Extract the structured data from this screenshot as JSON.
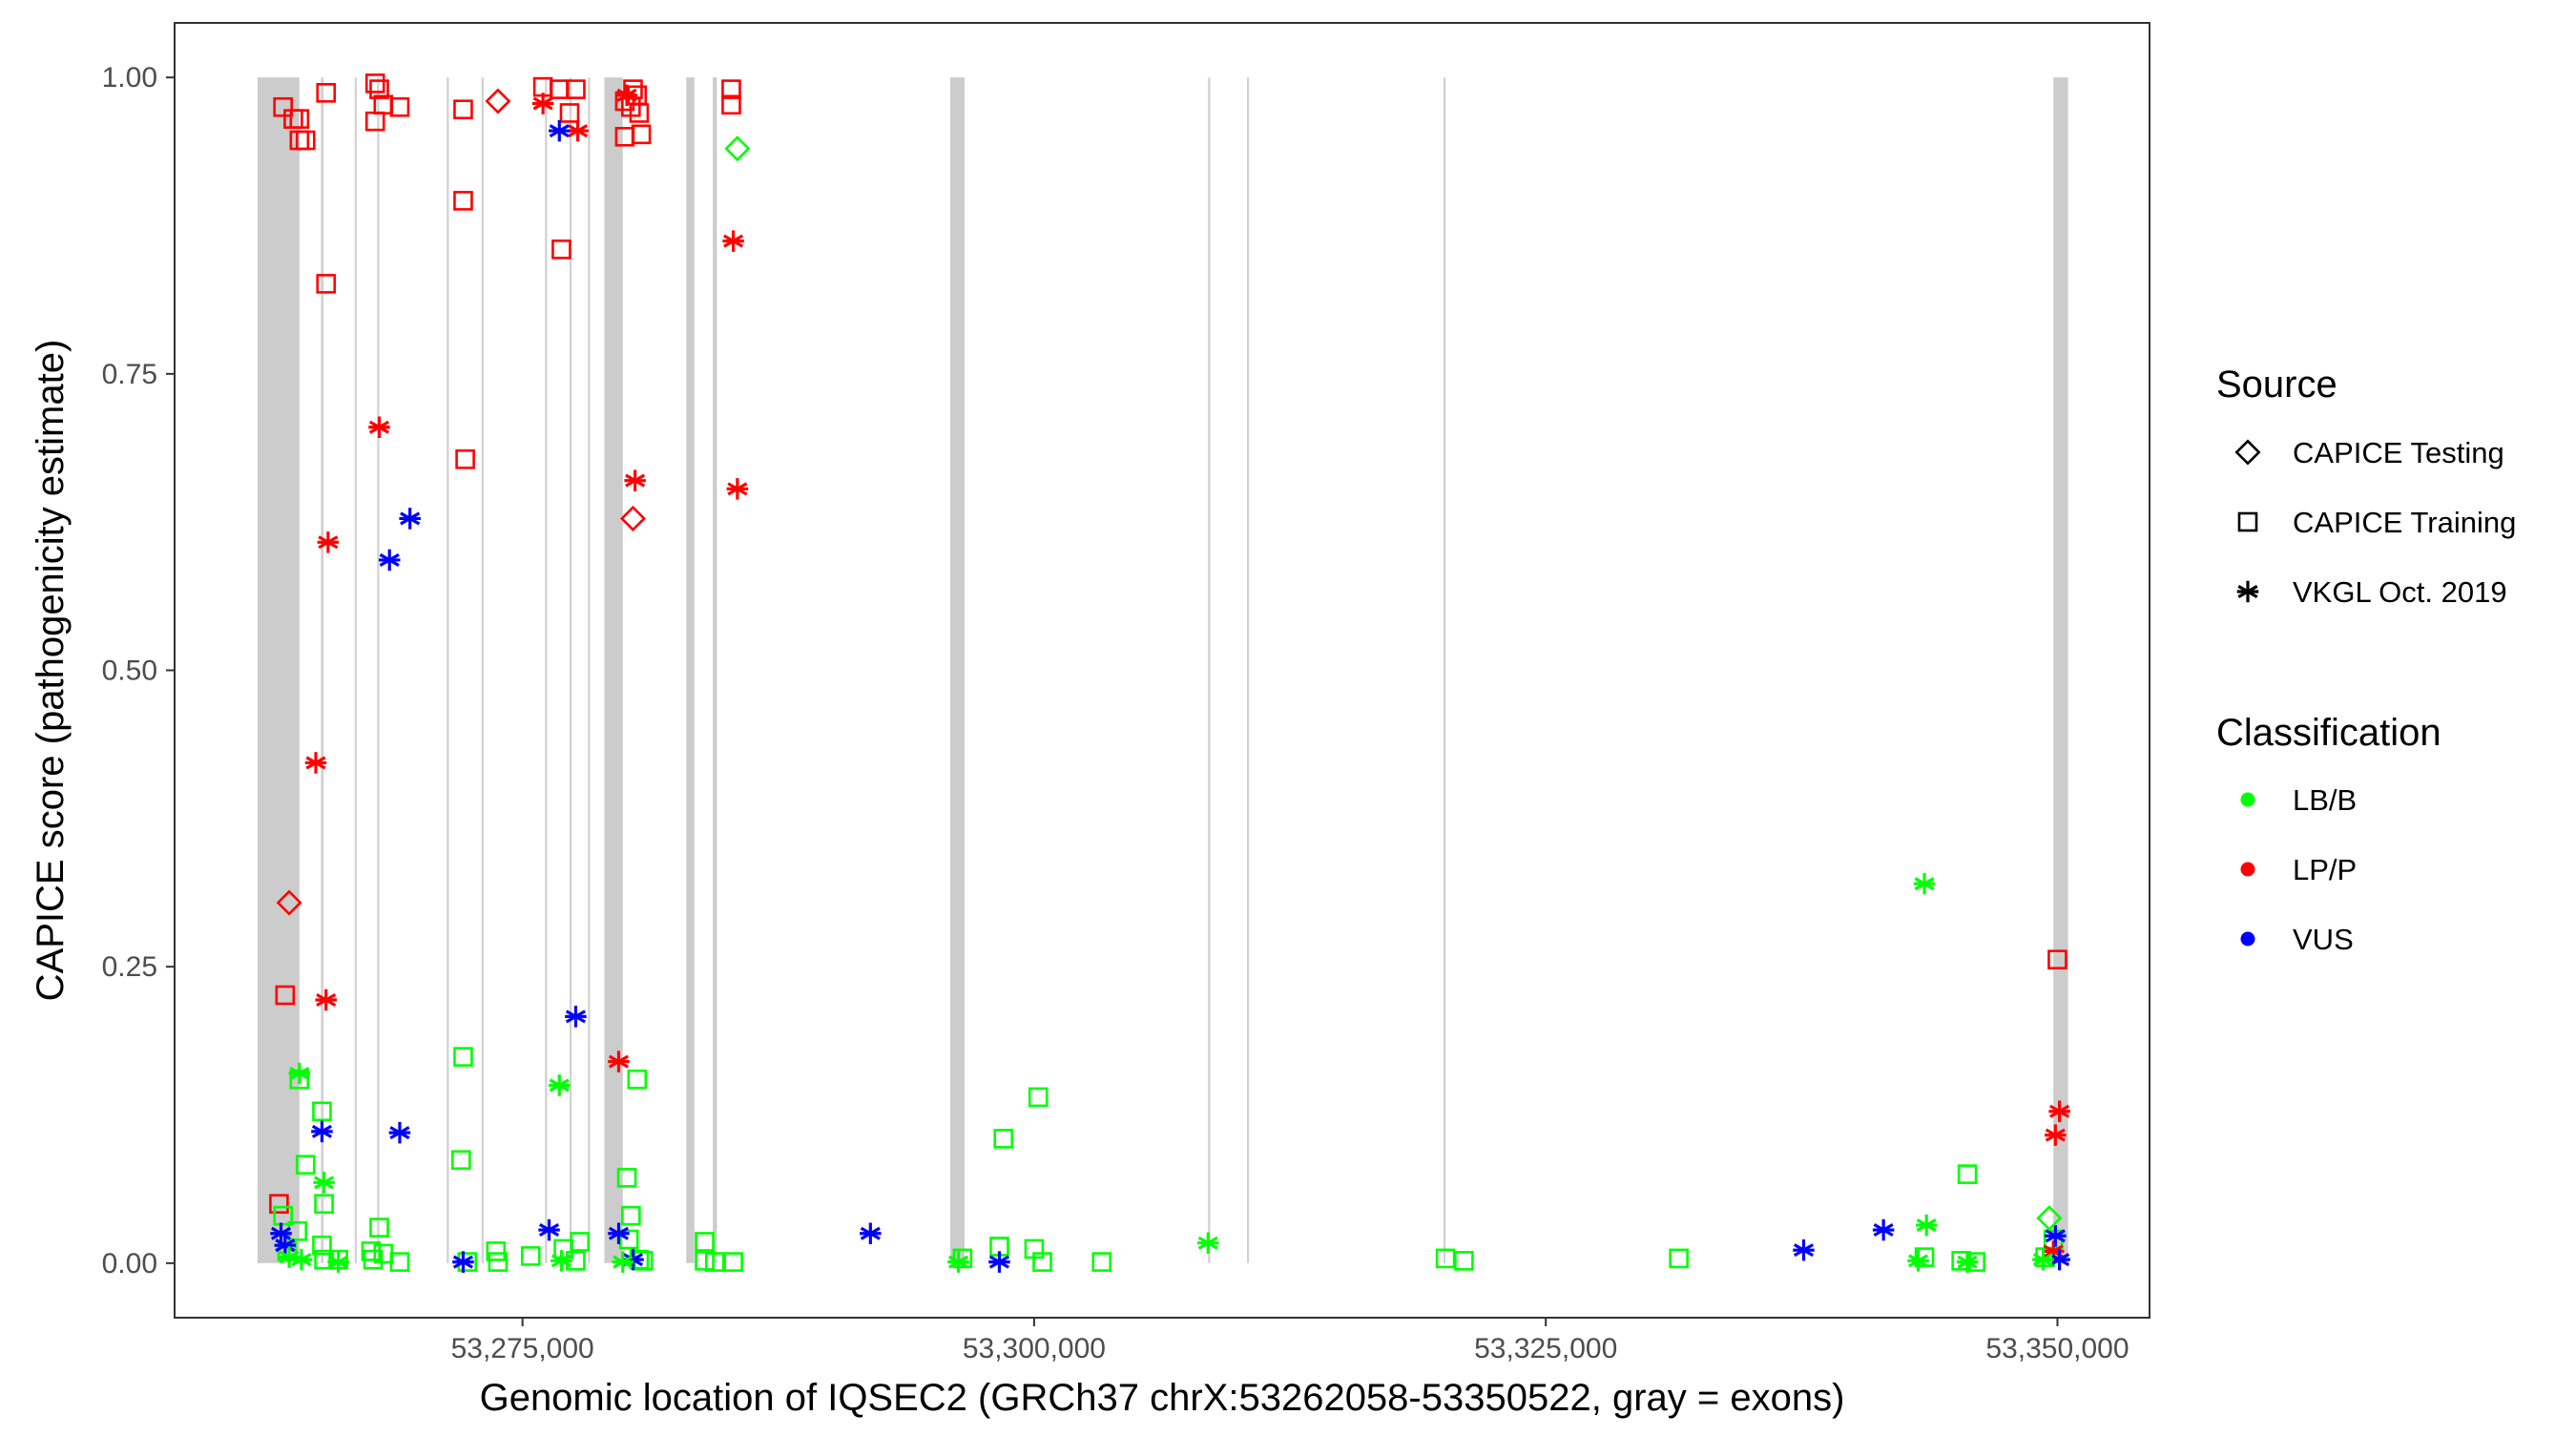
{
  "chart_data": {
    "type": "scatter",
    "title": "",
    "xlabel": "Genomic location of IQSEC2 (GRCh37 chrX:53262058-53350522, gray = exons)",
    "ylabel": "CAPICE score (pathogenicity estimate)",
    "xlim": [
      53258000,
      53354500
    ],
    "ylim": [
      -0.046,
      1.046
    ],
    "x_ticks": [
      53275000,
      53300000,
      53325000,
      53350000
    ],
    "x_tick_labels": [
      "53,275,000",
      "53,300,000",
      "53,325,000",
      "53,350,000"
    ],
    "y_ticks": [
      0,
      0.25,
      0.5,
      0.75,
      1
    ],
    "y_tick_labels": [
      "0.00",
      "0.25",
      "0.50",
      "0.75",
      "1.00"
    ],
    "grid": false,
    "exons": [
      [
        53262050,
        53264100
      ],
      [
        53265150,
        53265280
      ],
      [
        53266800,
        53266900
      ],
      [
        53267900,
        53268000
      ],
      [
        53271300,
        53271400
      ],
      [
        53273000,
        53273100
      ],
      [
        53276100,
        53276200
      ],
      [
        53277300,
        53277400
      ],
      [
        53278200,
        53278300
      ],
      [
        53279000,
        53279900
      ],
      [
        53283000,
        53283400
      ],
      [
        53284300,
        53284500
      ],
      [
        53295900,
        53296600
      ],
      [
        53308500,
        53308600
      ],
      [
        53310400,
        53310500
      ],
      [
        53320000,
        53320100
      ],
      [
        53349800,
        53350522
      ]
    ],
    "legends": [
      {
        "title": "Source",
        "items": [
          {
            "label": "CAPICE Testing",
            "shape": "diamond"
          },
          {
            "label": "CAPICE Training",
            "shape": "square"
          },
          {
            "label": "VKGL Oct. 2019",
            "shape": "asterisk"
          }
        ]
      },
      {
        "title": "Classification",
        "items": [
          {
            "label": "LB/B",
            "color": "#00ff00"
          },
          {
            "label": "LP/P",
            "color": "#ff0000"
          },
          {
            "label": "VUS",
            "color": "#0000ff"
          }
        ]
      }
    ],
    "series": [
      {
        "name": "CAPICE Training",
        "shape": "square",
        "groups": [
          {
            "classification": "LP/P",
            "points": [
              [
                53263300,
                0.975
              ],
              [
                53263800,
                0.965
              ],
              [
                53264100,
                0.965
              ],
              [
                53264100,
                0.947
              ],
              [
                53264400,
                0.947
              ],
              [
                53265400,
                0.987
              ],
              [
                53267800,
                0.995
              ],
              [
                53268000,
                0.99
              ],
              [
                53267800,
                0.963
              ],
              [
                53268200,
                0.977
              ],
              [
                53269000,
                0.975
              ],
              [
                53272100,
                0.973
              ],
              [
                53276000,
                0.992
              ],
              [
                53276800,
                0.99
              ],
              [
                53277600,
                0.99
              ],
              [
                53277300,
                0.97
              ],
              [
                53280000,
                0.98
              ],
              [
                53280400,
                0.99
              ],
              [
                53280600,
                0.985
              ],
              [
                53280300,
                0.975
              ],
              [
                53280700,
                0.97
              ],
              [
                53280000,
                0.95
              ],
              [
                53280800,
                0.952
              ],
              [
                53285200,
                0.99
              ],
              [
                53285200,
                0.977
              ],
              [
                53272100,
                0.896
              ],
              [
                53276900,
                0.855
              ],
              [
                53265400,
                0.826
              ],
              [
                53272200,
                0.678
              ],
              [
                53263400,
                0.226
              ],
              [
                53263100,
                0.05
              ],
              [
                53350000,
                0.256
              ]
            ]
          },
          {
            "classification": "LB/B",
            "points": [
              [
                53264100,
                0.155
              ],
              [
                53265200,
                0.128
              ],
              [
                53264400,
                0.083
              ],
              [
                53265300,
                0.05
              ],
              [
                53264000,
                0.027
              ],
              [
                53263300,
                0.04
              ],
              [
                53263500,
                0.01
              ],
              [
                53265200,
                0.015
              ],
              [
                53265300,
                0.003
              ],
              [
                53266000,
                0.003
              ],
              [
                53267600,
                0.01
              ],
              [
                53267700,
                0.003
              ],
              [
                53268000,
                0.03
              ],
              [
                53268200,
                0.008
              ],
              [
                53269000,
                0.001
              ],
              [
                53272100,
                0.174
              ],
              [
                53272000,
                0.087
              ],
              [
                53272300,
                0.001
              ],
              [
                53273700,
                0.01
              ],
              [
                53273800,
                0.001
              ],
              [
                53275400,
                0.006
              ],
              [
                53277000,
                0.012
              ],
              [
                53277800,
                0.018
              ],
              [
                53277600,
                0.002
              ],
              [
                53280100,
                0.072
              ],
              [
                53280300,
                0.04
              ],
              [
                53280600,
                0.155
              ],
              [
                53280200,
                0.02
              ],
              [
                53280700,
                0.003
              ],
              [
                53280900,
                0.002
              ],
              [
                53283900,
                0.018
              ],
              [
                53283900,
                0.002
              ],
              [
                53284400,
                0.001
              ],
              [
                53285300,
                0.001
              ],
              [
                53296500,
                0.004
              ],
              [
                53298300,
                0.014
              ],
              [
                53298500,
                0.105
              ],
              [
                53300200,
                0.14
              ],
              [
                53300000,
                0.012
              ],
              [
                53300400,
                0.001
              ],
              [
                53303300,
                0.001
              ],
              [
                53320100,
                0.004
              ],
              [
                53321000,
                0.002
              ],
              [
                53331500,
                0.004
              ],
              [
                53343500,
                0.005
              ],
              [
                53345600,
                0.075
              ],
              [
                53345300,
                0.002
              ],
              [
                53346000,
                0.001
              ],
              [
                53349400,
                0.005
              ],
              [
                53349800,
                0.02
              ]
            ]
          }
        ]
      },
      {
        "name": "VKGL Oct. 2019",
        "shape": "asterisk",
        "groups": [
          {
            "classification": "LP/P",
            "points": [
              [
                53276000,
                0.978
              ],
              [
                53277700,
                0.955
              ],
              [
                53280100,
                0.985
              ],
              [
                53285300,
                0.862
              ],
              [
                53280500,
                0.66
              ],
              [
                53285500,
                0.653
              ],
              [
                53268000,
                0.705
              ],
              [
                53265500,
                0.608
              ],
              [
                53264900,
                0.422
              ],
              [
                53265400,
                0.222
              ],
              [
                53279700,
                0.17
              ],
              [
                53350100,
                0.128
              ],
              [
                53349900,
                0.108
              ],
              [
                53349800,
                0.01
              ]
            ]
          },
          {
            "classification": "VUS",
            "points": [
              [
                53276800,
                0.955
              ],
              [
                53268500,
                0.593
              ],
              [
                53269500,
                0.628
              ],
              [
                53277600,
                0.208
              ],
              [
                53265200,
                0.111
              ],
              [
                53269000,
                0.11
              ],
              [
                53263200,
                0.025
              ],
              [
                53263400,
                0.015
              ],
              [
                53276300,
                0.028
              ],
              [
                53279700,
                0.025
              ],
              [
                53280400,
                0.003
              ],
              [
                53272100,
                0.001
              ],
              [
                53292000,
                0.025
              ],
              [
                53298300,
                0.001
              ],
              [
                53337600,
                0.011
              ],
              [
                53341500,
                0.028
              ],
              [
                53349900,
                0.023
              ],
              [
                53350100,
                0.003
              ]
            ]
          },
          {
            "classification": "LB/B",
            "points": [
              [
                53264100,
                0.16
              ],
              [
                53265300,
                0.068
              ],
              [
                53276800,
                0.15
              ],
              [
                53263600,
                0.005
              ],
              [
                53264200,
                0.003
              ],
              [
                53266000,
                0.001
              ],
              [
                53276900,
                0.002
              ],
              [
                53279900,
                0.001
              ],
              [
                53296300,
                0.001
              ],
              [
                53308500,
                0.017
              ],
              [
                53343500,
                0.32
              ],
              [
                53343600,
                0.032
              ],
              [
                53343200,
                0.002
              ],
              [
                53345600,
                0.001
              ],
              [
                53349300,
                0.003
              ]
            ]
          }
        ]
      },
      {
        "name": "CAPICE Testing",
        "shape": "diamond",
        "groups": [
          {
            "classification": "LP/P",
            "points": [
              [
                53273800,
                0.98
              ],
              [
                53263600,
                0.304
              ],
              [
                53280400,
                0.628
              ]
            ]
          },
          {
            "classification": "LB/B",
            "points": [
              [
                53285500,
                0.94
              ],
              [
                53349600,
                0.038
              ]
            ]
          }
        ]
      }
    ],
    "colors": {
      "LB/B": "#00ff00",
      "LP/P": "#ff0000",
      "VUS": "#0000ff",
      "exon_fill": "#cccccc",
      "exon_line": "#d0d0d0",
      "panel_border": "#333333"
    }
  }
}
